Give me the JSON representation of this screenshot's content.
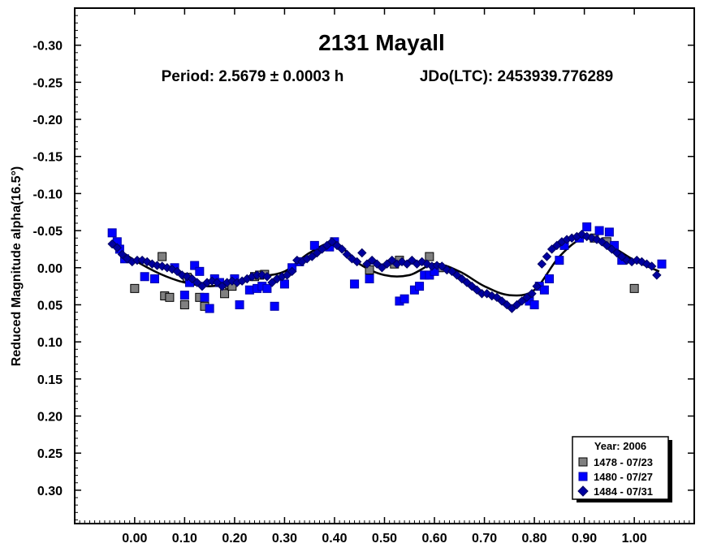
{
  "chart_data": {
    "type": "scatter",
    "title": "2131 Mayall",
    "subtitle_period": "Period: 2.5679 ± 0.0003 h",
    "subtitle_epoch": "JDo(LTC): 2453939.776289",
    "ylabel": "Reduced Magnitude alpha(16.5°)",
    "xlabel": "",
    "xlim": [
      -0.12,
      1.12
    ],
    "ylim": [
      -0.35,
      0.345
    ],
    "y_inverted": true,
    "grid": false,
    "legend_position": "bottom-right",
    "x_ticks": [
      0.0,
      0.1,
      0.2,
      0.3,
      0.4,
      0.5,
      0.6,
      0.7,
      0.8,
      0.9,
      1.0
    ],
    "x_tick_labels": [
      "0.00",
      "0.10",
      "0.20",
      "0.30",
      "0.40",
      "0.50",
      "0.60",
      "0.70",
      "0.80",
      "0.90",
      "1.00"
    ],
    "y_ticks": [
      -0.3,
      -0.25,
      -0.2,
      -0.15,
      -0.1,
      -0.05,
      0.0,
      0.05,
      0.1,
      0.15,
      0.2,
      0.25,
      0.3
    ],
    "y_tick_labels": [
      "-0.30",
      "-0.25",
      "-0.20",
      "-0.15",
      "-0.10",
      "-0.05",
      "0.00",
      "0.05",
      "0.10",
      "0.15",
      "0.20",
      "0.25",
      "0.30"
    ],
    "legend": {
      "title": "Year: 2006",
      "entries": [
        "1478 - 07/23",
        "1480 - 07/27",
        "1484 - 07/31"
      ]
    },
    "series": [
      {
        "name": "1478 - 07/23",
        "marker": "square",
        "color": "#808080",
        "x": [
          0.0,
          0.055,
          0.06,
          0.07,
          0.1,
          0.105,
          0.13,
          0.14,
          0.18,
          0.19,
          0.195,
          0.24,
          0.25,
          0.26,
          0.47,
          0.52,
          0.53,
          0.59,
          0.61,
          0.92,
          0.945,
          1.0
        ],
        "y": [
          0.028,
          -0.015,
          0.038,
          0.04,
          0.05,
          0.013,
          0.04,
          0.052,
          0.035,
          0.023,
          0.025,
          0.012,
          0.01,
          0.009,
          0.003,
          -0.005,
          -0.01,
          -0.015,
          0.0,
          -0.04,
          -0.035,
          0.028
        ]
      },
      {
        "name": "1480 - 07/27",
        "marker": "square",
        "color": "#0000ff",
        "x": [
          -0.045,
          -0.035,
          -0.03,
          -0.02,
          0.02,
          0.04,
          0.08,
          0.1,
          0.11,
          0.12,
          0.13,
          0.14,
          0.15,
          0.16,
          0.17,
          0.2,
          0.21,
          0.23,
          0.245,
          0.255,
          0.265,
          0.28,
          0.3,
          0.315,
          0.33,
          0.36,
          0.39,
          0.4,
          0.44,
          0.47,
          0.53,
          0.54,
          0.56,
          0.57,
          0.58,
          0.59,
          0.6,
          0.79,
          0.8,
          0.81,
          0.82,
          0.83,
          0.85,
          0.86,
          0.89,
          0.905,
          0.93,
          0.95,
          0.96,
          0.975,
          1.055
        ],
        "y": [
          -0.047,
          -0.035,
          -0.025,
          -0.012,
          0.012,
          0.015,
          0.0,
          0.037,
          0.02,
          -0.003,
          0.005,
          0.04,
          0.055,
          0.015,
          0.02,
          0.015,
          0.05,
          0.03,
          0.028,
          0.025,
          0.028,
          0.052,
          0.022,
          0.0,
          -0.008,
          -0.03,
          -0.028,
          -0.035,
          0.022,
          0.015,
          0.045,
          0.042,
          0.03,
          0.025,
          0.01,
          0.01,
          0.005,
          0.045,
          0.05,
          0.025,
          0.03,
          0.015,
          -0.01,
          -0.03,
          -0.04,
          -0.055,
          -0.05,
          -0.048,
          -0.03,
          -0.01,
          -0.005
        ]
      },
      {
        "name": "1484 - 07/31",
        "marker": "diamond",
        "color": "#0000a0",
        "x": [
          -0.045,
          -0.035,
          -0.025,
          -0.015,
          -0.005,
          0.005,
          0.015,
          0.025,
          0.035,
          0.045,
          0.055,
          0.065,
          0.075,
          0.085,
          0.095,
          0.105,
          0.115,
          0.125,
          0.135,
          0.145,
          0.155,
          0.165,
          0.175,
          0.185,
          0.195,
          0.205,
          0.215,
          0.225,
          0.235,
          0.245,
          0.255,
          0.265,
          0.275,
          0.285,
          0.295,
          0.305,
          0.315,
          0.325,
          0.335,
          0.345,
          0.355,
          0.365,
          0.375,
          0.385,
          0.395,
          0.405,
          0.415,
          0.425,
          0.435,
          0.445,
          0.455,
          0.465,
          0.475,
          0.485,
          0.495,
          0.505,
          0.515,
          0.525,
          0.535,
          0.545,
          0.555,
          0.565,
          0.575,
          0.585,
          0.595,
          0.605,
          0.615,
          0.625,
          0.635,
          0.645,
          0.655,
          0.665,
          0.675,
          0.685,
          0.695,
          0.705,
          0.715,
          0.725,
          0.735,
          0.745,
          0.755,
          0.765,
          0.775,
          0.785,
          0.795,
          0.805,
          0.815,
          0.825,
          0.835,
          0.845,
          0.855,
          0.865,
          0.875,
          0.885,
          0.895,
          0.905,
          0.915,
          0.925,
          0.935,
          0.945,
          0.955,
          0.965,
          0.975,
          0.985,
          0.995,
          1.005,
          1.015,
          1.025,
          1.035,
          1.045
        ],
        "y": [
          -0.032,
          -0.027,
          -0.018,
          -0.012,
          -0.008,
          -0.01,
          -0.01,
          -0.008,
          -0.005,
          -0.003,
          -0.002,
          0.0,
          0.002,
          0.005,
          0.01,
          0.012,
          0.015,
          0.02,
          0.025,
          0.02,
          0.018,
          0.02,
          0.025,
          0.02,
          0.018,
          0.02,
          0.018,
          0.015,
          0.012,
          0.01,
          0.01,
          0.012,
          0.02,
          0.015,
          0.012,
          0.01,
          0.005,
          -0.01,
          -0.008,
          -0.012,
          -0.015,
          -0.02,
          -0.025,
          -0.03,
          -0.035,
          -0.03,
          -0.025,
          -0.018,
          -0.012,
          -0.008,
          -0.02,
          -0.005,
          -0.01,
          -0.005,
          0.0,
          -0.005,
          -0.01,
          -0.005,
          -0.008,
          -0.005,
          -0.01,
          -0.005,
          -0.008,
          -0.005,
          -0.002,
          -0.003,
          -0.002,
          0.003,
          0.005,
          0.01,
          0.015,
          0.02,
          0.025,
          0.03,
          0.035,
          0.035,
          0.038,
          0.04,
          0.045,
          0.05,
          0.055,
          0.05,
          0.045,
          0.04,
          0.035,
          0.025,
          -0.005,
          -0.015,
          -0.025,
          -0.03,
          -0.035,
          -0.038,
          -0.04,
          -0.042,
          -0.045,
          -0.042,
          -0.04,
          -0.038,
          -0.035,
          -0.03,
          -0.025,
          -0.02,
          -0.015,
          -0.01,
          -0.008,
          -0.01,
          -0.008,
          -0.005,
          -0.002,
          0.01
        ]
      }
    ],
    "fit_curve": {
      "x": [
        -0.05,
        0.0,
        0.05,
        0.1,
        0.15,
        0.2,
        0.25,
        0.3,
        0.35,
        0.4,
        0.45,
        0.5,
        0.55,
        0.6,
        0.65,
        0.7,
        0.75,
        0.8,
        0.85,
        0.9,
        0.95,
        1.0,
        1.05
      ],
      "y": [
        -0.033,
        -0.01,
        0.008,
        0.02,
        0.025,
        0.02,
        0.012,
        0.005,
        -0.02,
        -0.033,
        -0.005,
        0.01,
        0.01,
        -0.005,
        0.005,
        0.025,
        0.037,
        0.03,
        -0.015,
        -0.04,
        -0.03,
        -0.01,
        0.005
      ]
    }
  }
}
